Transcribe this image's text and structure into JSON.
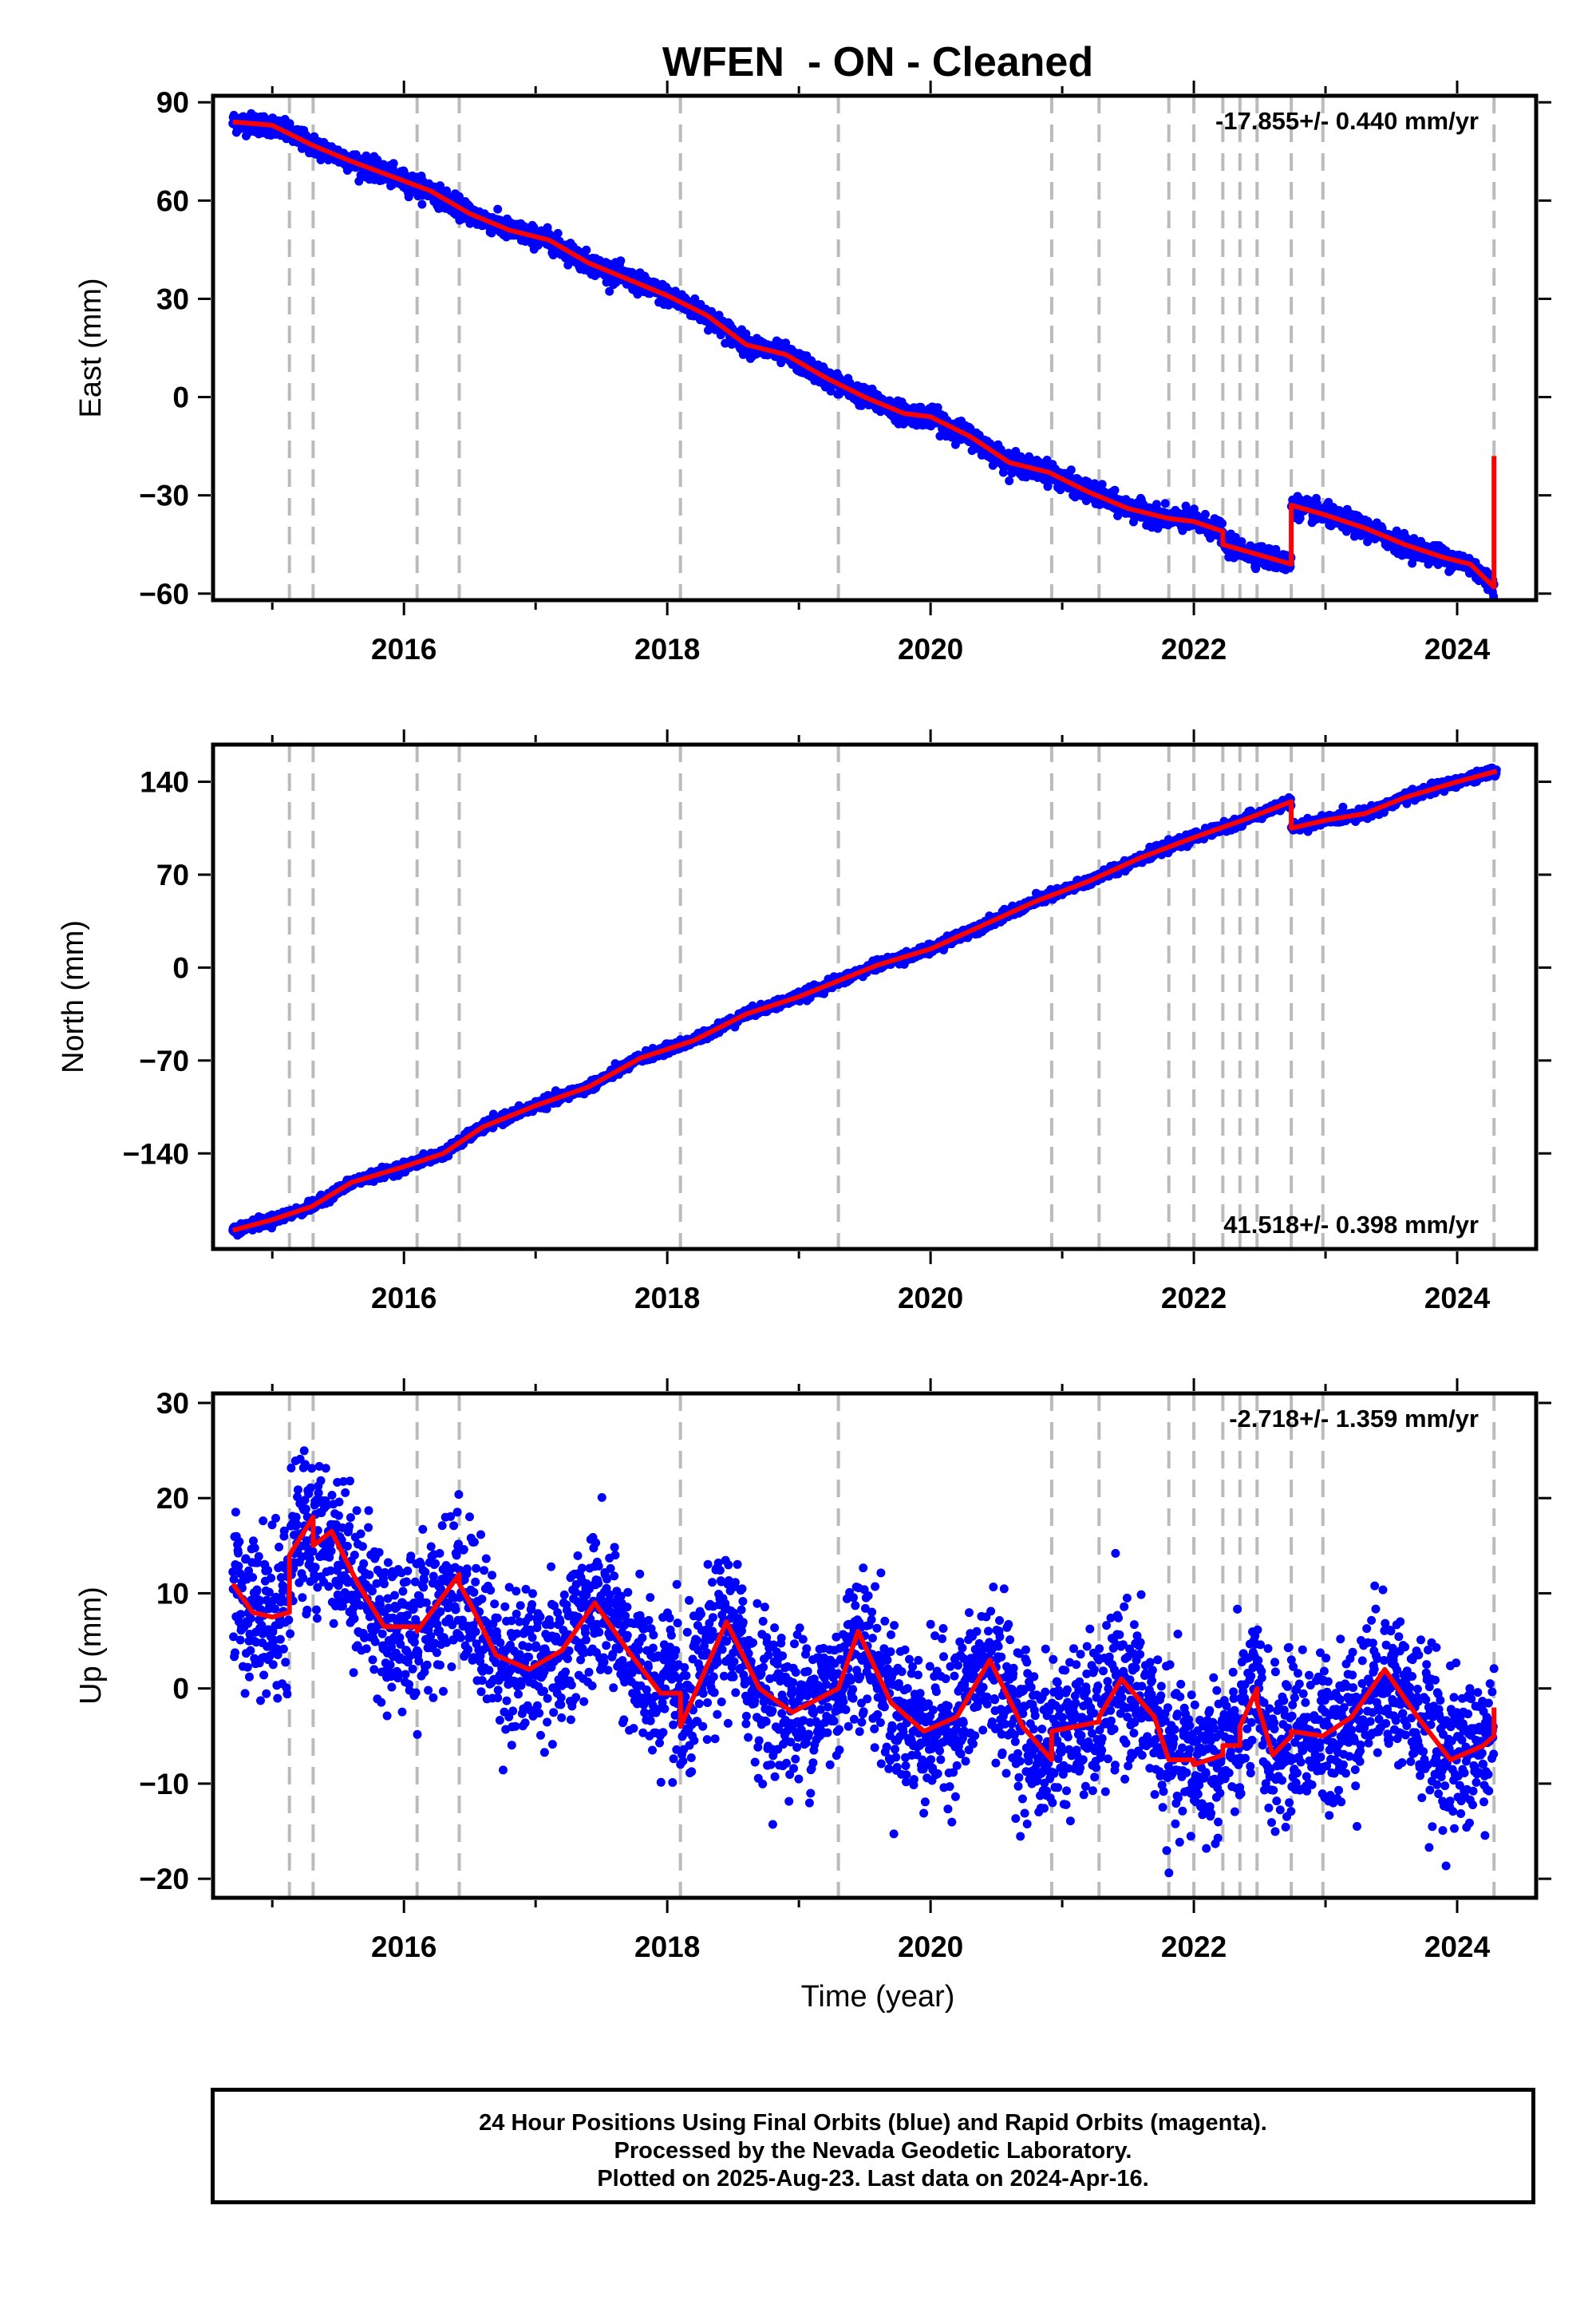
{
  "title": "WFEN  - ON - Cleaned",
  "xlabel": "Time (year)",
  "footer": [
    "24 Hour Positions Using Final Orbits (blue) and Rapid Orbits (magenta).",
    "Processed by the Nevada Geodetic Laboratory.",
    "Plotted on 2025-Aug-23. Last data on 2024-Apr-16."
  ],
  "colors": {
    "final_orbits": "#0000ff",
    "model": "#ff0000",
    "offset_lines": "#bbbbbb"
  },
  "offset_epochs": [
    2015.13,
    2015.31,
    2016.1,
    2016.42,
    2018.1,
    2019.3,
    2020.92,
    2021.28,
    2021.81,
    2022.0,
    2022.22,
    2022.35,
    2022.48,
    2022.74,
    2022.98,
    2024.28
  ],
  "chart_data": [
    {
      "type": "scatter",
      "component": "east",
      "ylabel": "East (mm)",
      "rate_label": "-17.855+/- 0.440 mm/yr",
      "rate_position": "top-right",
      "xlim": [
        2014.55,
        2024.6
      ],
      "ylim": [
        -62,
        92
      ],
      "x_ticks": [
        "2016",
        "2018",
        "2020",
        "2022",
        "2024"
      ],
      "y_ticks": [
        "-60",
        "-30",
        "0",
        "30",
        "60",
        "90"
      ],
      "model": {
        "x": [
          2014.7,
          2015.0,
          2015.3,
          2015.6,
          2016.0,
          2016.2,
          2016.5,
          2016.8,
          2017.1,
          2017.4,
          2017.7,
          2018.0,
          2018.3,
          2018.6,
          2018.9,
          2019.2,
          2019.5,
          2019.8,
          2020.0,
          2020.3,
          2020.6,
          2020.9,
          2021.2,
          2021.5,
          2021.8,
          2022.0,
          2022.22,
          2022.22,
          2022.74,
          2022.74,
          2023.0,
          2023.3,
          2023.6,
          2023.9,
          2024.1,
          2024.28,
          2024.28
        ],
        "y": [
          84,
          83,
          77,
          72,
          66,
          63,
          56,
          51,
          48,
          41,
          36,
          31,
          25,
          16,
          13,
          6,
          0,
          -5,
          -6,
          -12,
          -20,
          -23,
          -29,
          -34,
          -37,
          -38,
          -41,
          -45,
          -51,
          -33,
          -36,
          -40,
          -45,
          -49,
          -51,
          -58,
          -18
        ]
      },
      "residual_scatter_mm": 1.5
    },
    {
      "type": "scatter",
      "component": "north",
      "ylabel": "North (mm)",
      "rate_label": "41.518+/- 0.398 mm/yr",
      "rate_position": "bottom-right",
      "xlim": [
        2014.55,
        2024.6
      ],
      "ylim": [
        -212,
        168
      ],
      "x_ticks": [
        "2016",
        "2018",
        "2020",
        "2022",
        "2024"
      ],
      "y_ticks": [
        "-140",
        "-70",
        "0",
        "70",
        "140"
      ],
      "model": {
        "x": [
          2014.7,
          2015.0,
          2015.3,
          2015.6,
          2016.0,
          2016.3,
          2016.6,
          2017.0,
          2017.4,
          2017.8,
          2018.2,
          2018.6,
          2019.0,
          2019.3,
          2019.6,
          2020.0,
          2020.4,
          2020.8,
          2021.2,
          2021.6,
          2022.0,
          2022.4,
          2022.74,
          2022.74,
          2023.0,
          2023.3,
          2023.6,
          2024.0,
          2024.3
        ],
        "y": [
          -198,
          -190,
          -180,
          -162,
          -150,
          -140,
          -120,
          -104,
          -90,
          -68,
          -55,
          -35,
          -22,
          -10,
          2,
          14,
          32,
          50,
          65,
          83,
          98,
          112,
          125,
          105,
          111,
          116,
          128,
          140,
          148
        ]
      },
      "residual_scatter_mm": 1.8
    },
    {
      "type": "scatter",
      "component": "up",
      "ylabel": "Up (mm)",
      "rate_label": "-2.718+/- 1.359 mm/yr",
      "rate_position": "top-right",
      "xlim": [
        2014.55,
        2024.6
      ],
      "ylim": [
        -22,
        31
      ],
      "x_ticks": [
        "2016",
        "2018",
        "2020",
        "2022",
        "2024"
      ],
      "y_ticks": [
        "-20",
        "-10",
        "0",
        "10",
        "20",
        "30"
      ],
      "model": {
        "x": [
          2014.7,
          2014.85,
          2015.0,
          2015.13,
          2015.13,
          2015.31,
          2015.31,
          2015.45,
          2015.65,
          2015.85,
          2016.1,
          2016.1,
          2016.42,
          2016.42,
          2016.5,
          2016.7,
          2016.95,
          2017.2,
          2017.45,
          2017.7,
          2017.95,
          2018.1,
          2018.1,
          2018.45,
          2018.7,
          2018.95,
          2019.3,
          2019.45,
          2019.7,
          2019.95,
          2020.2,
          2020.45,
          2020.7,
          2020.92,
          2020.92,
          2021.28,
          2021.28,
          2021.45,
          2021.7,
          2021.81,
          2021.81,
          2022.0,
          2022.0,
          2022.22,
          2022.22,
          2022.35,
          2022.35,
          2022.48,
          2022.48,
          2022.6,
          2022.74,
          2022.74,
          2022.98,
          2023.2,
          2023.45,
          2023.7,
          2023.95,
          2024.2,
          2024.28,
          2024.28
        ],
        "y": [
          11,
          8,
          7.5,
          8,
          14,
          18,
          15,
          16.5,
          11,
          6.5,
          6.5,
          6,
          12,
          11,
          9,
          3.5,
          2,
          4,
          9,
          4,
          -0.5,
          -0.5,
          -4,
          7,
          0,
          -2.5,
          0,
          6,
          -1.5,
          -4.5,
          -3,
          3,
          -4,
          -7.5,
          -4.5,
          -3.5,
          -3,
          1,
          -3,
          -7.5,
          -7.5,
          -7.5,
          -8,
          -7,
          -6,
          -6,
          -4,
          0,
          -1.5,
          -7,
          -5,
          -4.5,
          -5,
          -3,
          2,
          -3,
          -7.5,
          -6,
          -5,
          -2
        ]
      },
      "residual_scatter_mm": 4.0
    }
  ]
}
